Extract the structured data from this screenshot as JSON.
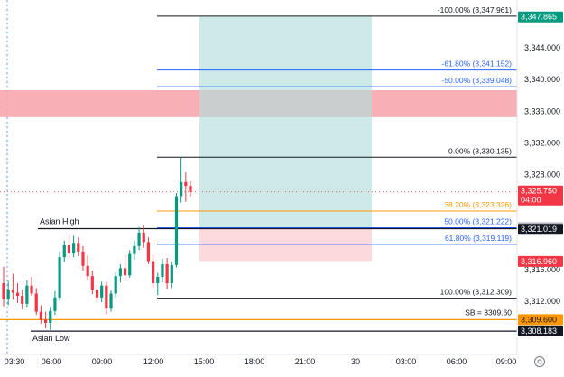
{
  "chart_data": {
    "type": "candlestick",
    "y_unit": "price",
    "ylim": [
      3305.2,
      3350.0
    ],
    "time_labels": [
      "03:30",
      "06:00",
      "09:00",
      "12:00",
      "15:00",
      "18:00",
      "21:00",
      "30",
      "03:00",
      "06:00",
      "09:00"
    ],
    "y_ticks": [
      {
        "value": 3312.0,
        "label": "3,312.000"
      },
      {
        "value": 3316.0,
        "label": "3,316.000"
      },
      {
        "value": 3328.0,
        "label": "3,328.000"
      },
      {
        "value": 3332.0,
        "label": "3,332.000"
      },
      {
        "value": 3336.0,
        "label": "3,336.000"
      },
      {
        "value": 3340.0,
        "label": "3,340.000"
      },
      {
        "value": 3344.0,
        "label": "3,344.000"
      }
    ],
    "price_tags": [
      {
        "value": 3347.865,
        "label": "3,347.865",
        "bg": "#089981",
        "fg": "#ffffff"
      },
      {
        "value": 3325.75,
        "label": "3,325.750",
        "sublabel": "04:00",
        "bg": "#f23645",
        "fg": "#ffffff"
      },
      {
        "value": 3321.222,
        "label": "3,321.222",
        "bg": "#b2b5be",
        "fg": "#131722"
      },
      {
        "value": 3321.019,
        "label": "3,321.019",
        "bg": "#131722",
        "fg": "#ffffff"
      },
      {
        "value": 3316.96,
        "label": "3,316.960",
        "bg": "#f23645",
        "fg": "#ffffff"
      },
      {
        "value": 3309.6,
        "label": "3,309.600",
        "bg": "#ff9800",
        "fg": "#131722"
      },
      {
        "value": 3308.183,
        "label": "3,308.183",
        "bg": "#131722",
        "fg": "#ffffff"
      }
    ],
    "fib_levels": [
      {
        "label": "-100.00% (3,347.961)",
        "value": 3347.961,
        "color": "#131722"
      },
      {
        "label": "-61.80% (3,341.152)",
        "value": 3341.152,
        "color": "#2962ff"
      },
      {
        "label": "-50.00% (3,339.048)",
        "value": 3339.048,
        "color": "#2962ff"
      },
      {
        "label": "0.00% (3,330.135)",
        "value": 3330.135,
        "color": "#131722"
      },
      {
        "label": "38.20% (3,323.326)",
        "value": 3323.326,
        "color": "#ff9800"
      },
      {
        "label": "50.00% (3,321.222)",
        "value": 3321.222,
        "color": "#2962ff"
      },
      {
        "label": "61.80% (3,319.119)",
        "value": 3319.119,
        "color": "#2962ff"
      },
      {
        "label": "100.00% (3,312.309)",
        "value": 3312.309,
        "color": "#131722"
      }
    ],
    "horizontal_lines": [
      {
        "label": "Asian High",
        "value": 3321.1,
        "color": "#131722"
      },
      {
        "label": "SB = 3309.60",
        "value": 3309.6,
        "color": "#ff9800"
      },
      {
        "label": "Asian Low",
        "value": 3308.15,
        "color": "#131722"
      }
    ],
    "supply_zone": {
      "from": 3335.2,
      "to": 3338.6,
      "color": "#f7a1a8"
    },
    "position": {
      "entry": 3321.1,
      "target": 3348.0,
      "stop": 3317.0,
      "profit_color": "#b2dfdb",
      "loss_color": "#fcd5d8"
    },
    "candles": [
      {
        "o": 3314.2,
        "h": 3316.3,
        "l": 3311.3,
        "c": 3312.2
      },
      {
        "o": 3312.2,
        "h": 3314.5,
        "l": 3311.4,
        "c": 3313.4
      },
      {
        "o": 3313.4,
        "h": 3315.4,
        "l": 3312.1,
        "c": 3313.0
      },
      {
        "o": 3313.0,
        "h": 3314.2,
        "l": 3311.7,
        "c": 3312.6
      },
      {
        "o": 3312.6,
        "h": 3313.4,
        "l": 3310.9,
        "c": 3311.6
      },
      {
        "o": 3311.6,
        "h": 3314.6,
        "l": 3311.2,
        "c": 3313.9
      },
      {
        "o": 3313.9,
        "h": 3315.0,
        "l": 3312.6,
        "c": 3312.9
      },
      {
        "o": 3312.9,
        "h": 3313.6,
        "l": 3310.2,
        "c": 3310.6
      },
      {
        "o": 3310.6,
        "h": 3311.4,
        "l": 3309.1,
        "c": 3309.6
      },
      {
        "o": 3309.6,
        "h": 3310.6,
        "l": 3308.5,
        "c": 3309.2
      },
      {
        "o": 3309.2,
        "h": 3311.2,
        "l": 3308.3,
        "c": 3310.7
      },
      {
        "o": 3310.7,
        "h": 3313.2,
        "l": 3310.2,
        "c": 3312.4
      },
      {
        "o": 3312.4,
        "h": 3318.2,
        "l": 3312.0,
        "c": 3317.5
      },
      {
        "o": 3317.5,
        "h": 3319.6,
        "l": 3316.9,
        "c": 3319.0
      },
      {
        "o": 3319.0,
        "h": 3320.4,
        "l": 3317.3,
        "c": 3318.0
      },
      {
        "o": 3318.0,
        "h": 3320.2,
        "l": 3317.5,
        "c": 3319.3
      },
      {
        "o": 3319.3,
        "h": 3320.0,
        "l": 3317.6,
        "c": 3318.2
      },
      {
        "o": 3318.2,
        "h": 3318.9,
        "l": 3315.8,
        "c": 3316.4
      },
      {
        "o": 3316.4,
        "h": 3317.7,
        "l": 3314.6,
        "c": 3315.1
      },
      {
        "o": 3315.1,
        "h": 3315.8,
        "l": 3312.8,
        "c": 3313.4
      },
      {
        "o": 3313.4,
        "h": 3314.0,
        "l": 3311.9,
        "c": 3312.4
      },
      {
        "o": 3312.4,
        "h": 3314.4,
        "l": 3311.8,
        "c": 3313.9
      },
      {
        "o": 3313.9,
        "h": 3314.4,
        "l": 3310.3,
        "c": 3311.0
      },
      {
        "o": 3311.0,
        "h": 3313.3,
        "l": 3310.6,
        "c": 3312.9
      },
      {
        "o": 3312.9,
        "h": 3315.6,
        "l": 3312.4,
        "c": 3315.1
      },
      {
        "o": 3315.1,
        "h": 3316.6,
        "l": 3314.3,
        "c": 3316.1
      },
      {
        "o": 3316.1,
        "h": 3317.8,
        "l": 3314.6,
        "c": 3315.2
      },
      {
        "o": 3315.2,
        "h": 3318.4,
        "l": 3314.9,
        "c": 3317.9
      },
      {
        "o": 3317.9,
        "h": 3319.6,
        "l": 3317.2,
        "c": 3318.9
      },
      {
        "o": 3318.9,
        "h": 3321.3,
        "l": 3318.4,
        "c": 3320.6
      },
      {
        "o": 3320.6,
        "h": 3321.5,
        "l": 3318.7,
        "c": 3319.4
      },
      {
        "o": 3319.4,
        "h": 3320.0,
        "l": 3316.6,
        "c": 3317.0
      },
      {
        "o": 3317.0,
        "h": 3317.8,
        "l": 3313.6,
        "c": 3314.2
      },
      {
        "o": 3314.2,
        "h": 3315.5,
        "l": 3312.7,
        "c": 3315.0
      },
      {
        "o": 3315.0,
        "h": 3317.3,
        "l": 3314.3,
        "c": 3316.6
      },
      {
        "o": 3316.6,
        "h": 3317.4,
        "l": 3313.5,
        "c": 3314.2
      },
      {
        "o": 3314.2,
        "h": 3316.9,
        "l": 3313.6,
        "c": 3316.5
      },
      {
        "o": 3316.5,
        "h": 3325.6,
        "l": 3316.2,
        "c": 3325.2
      },
      {
        "o": 3325.2,
        "h": 3330.1,
        "l": 3324.4,
        "c": 3327.0
      },
      {
        "o": 3327.0,
        "h": 3328.2,
        "l": 3324.5,
        "c": 3326.5
      },
      {
        "o": 3326.5,
        "h": 3327.1,
        "l": 3325.2,
        "c": 3325.75
      }
    ],
    "up_color": "#089981",
    "down_color": "#f23645"
  },
  "ui": {
    "settings_icon": "gear-icon"
  }
}
